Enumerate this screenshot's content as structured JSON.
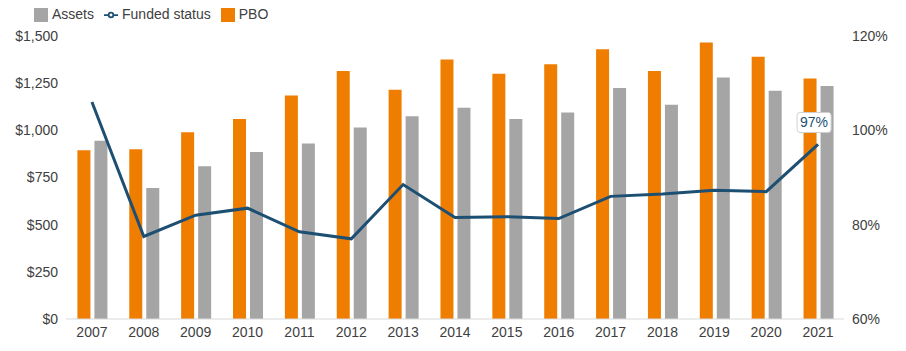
{
  "chart_data": {
    "type": "bar",
    "categories": [
      "2007",
      "2008",
      "2009",
      "2010",
      "2011",
      "2012",
      "2013",
      "2014",
      "2015",
      "2016",
      "2017",
      "2018",
      "2019",
      "2020",
      "2021"
    ],
    "series": [
      {
        "name": "PBO",
        "type": "bar",
        "color": "#ef7d00",
        "values": [
          895,
          900,
          990,
          1060,
          1185,
          1315,
          1215,
          1375,
          1300,
          1350,
          1430,
          1315,
          1465,
          1390,
          1275
        ]
      },
      {
        "name": "Assets",
        "type": "bar",
        "color": "#a5a5a5",
        "values": [
          945,
          695,
          810,
          885,
          930,
          1015,
          1075,
          1120,
          1060,
          1095,
          1225,
          1135,
          1280,
          1210,
          1235
        ]
      },
      {
        "name": "Funded status",
        "type": "line",
        "axis": "y2",
        "color": "#1d4f73",
        "values": [
          106,
          77.5,
          82,
          83.5,
          78.5,
          77,
          88.5,
          81.5,
          81.7,
          81.3,
          86,
          86.5,
          87.3,
          87,
          97
        ]
      }
    ],
    "ylim": [
      0,
      1500
    ],
    "yticks": [
      {
        "value": 0,
        "label": "$0"
      },
      {
        "value": 250,
        "label": "$250"
      },
      {
        "value": 500,
        "label": "$500"
      },
      {
        "value": 750,
        "label": "$750"
      },
      {
        "value": 1000,
        "label": "$1,000"
      },
      {
        "value": 1250,
        "label": "$1,250"
      },
      {
        "value": 1500,
        "label": "$1,500"
      }
    ],
    "y2lim": [
      60,
      120
    ],
    "y2ticks": [
      {
        "value": 60,
        "label": "60%"
      },
      {
        "value": 80,
        "label": "80%"
      },
      {
        "value": 100,
        "label": "100%"
      },
      {
        "value": 120,
        "label": "120%"
      }
    ],
    "annotations": [
      {
        "text": "97%",
        "x": "2021",
        "y": 97,
        "axis": "y2"
      }
    ],
    "grid": false,
    "legend": "top-left"
  }
}
